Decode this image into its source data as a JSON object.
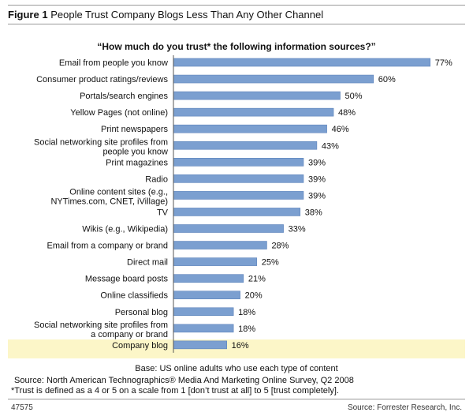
{
  "figure": {
    "label": "Figure 1",
    "title": "People Trust Company Blogs Less Than Any Other Channel"
  },
  "colors": {
    "bar": "#7b9fd0",
    "bar_edge": "#5d83bb",
    "highlight": "#fcf6c8",
    "rule": "#9a9a9a"
  },
  "chart_data": {
    "type": "bar",
    "orientation": "horizontal",
    "title": "“How much do you trust* the following information sources?”",
    "categories": [
      "Email from people you know",
      "Consumer product ratings/reviews",
      "Portals/search engines",
      "Yellow Pages (not online)",
      "Print newspapers",
      "Social networking site profiles from people you know",
      "Print magazines",
      "Radio",
      "Online content sites (e.g., NYTimes.com, CNET, iVillage)",
      "TV",
      "Wikis (e.g., Wikipedia)",
      "Email from a company or brand",
      "Direct mail",
      "Message board posts",
      "Online classifieds",
      "Personal blog",
      "Social networking site profiles from a company or brand",
      "Company blog"
    ],
    "category_lines": [
      [
        "Email from people you know"
      ],
      [
        "Consumer product ratings/reviews"
      ],
      [
        "Portals/search engines"
      ],
      [
        "Yellow Pages (not online)"
      ],
      [
        "Print newspapers"
      ],
      [
        "Social networking site profiles from",
        "people you know"
      ],
      [
        "Print magazines"
      ],
      [
        "Radio"
      ],
      [
        "Online content sites (e.g.,",
        "NYTimes.com, CNET, iVillage)"
      ],
      [
        "TV"
      ],
      [
        "Wikis (e.g., Wikipedia)"
      ],
      [
        "Email from a company or brand"
      ],
      [
        "Direct mail"
      ],
      [
        "Message board posts"
      ],
      [
        "Online classifieds"
      ],
      [
        "Personal blog"
      ],
      [
        "Social networking site profiles from",
        "a company or brand"
      ],
      [
        "Company blog"
      ]
    ],
    "values": [
      77,
      60,
      50,
      48,
      46,
      43,
      39,
      39,
      39,
      38,
      33,
      28,
      25,
      21,
      20,
      18,
      18,
      16
    ],
    "value_labels": [
      "77%",
      "60%",
      "50%",
      "48%",
      "46%",
      "43%",
      "39%",
      "39%",
      "39%",
      "38%",
      "33%",
      "28%",
      "25%",
      "21%",
      "20%",
      "18%",
      "18%",
      "16%"
    ],
    "highlighted_category": "Company blog",
    "xlim": [
      0,
      100
    ],
    "grid": false,
    "legend": "none"
  },
  "notes": {
    "base": "Base: US online adults who use each type of content",
    "source": "Source: North American Technographics® Media And Marketing Online Survey, Q2 2008",
    "trust": "*Trust is defined as a 4 or 5 on a scale from 1 [don’t trust at all] to 5 [trust completely]."
  },
  "footer": {
    "figure_id": "47575",
    "source": "Source: Forrester Research, Inc."
  }
}
